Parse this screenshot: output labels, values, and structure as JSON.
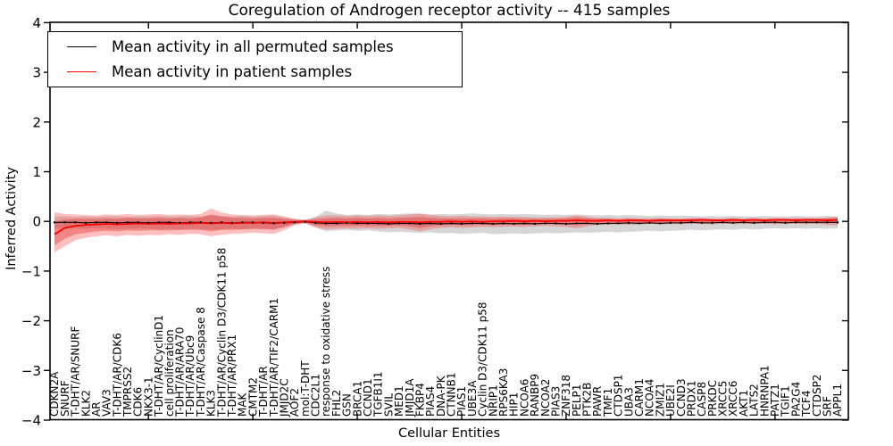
{
  "title": "Coregulation of Androgen receptor activity -- 415 samples",
  "legend": {
    "items": [
      {
        "label": "Mean activity in all permuted samples",
        "color": "#000000"
      },
      {
        "label": "Mean activity in patient samples",
        "color": "#ff0000"
      }
    ]
  },
  "chart_data": {
    "type": "line",
    "title": "Coregulation of Androgen receptor activity -- 415 samples",
    "xlabel": "Cellular Entities",
    "ylabel": "Inferred Activity",
    "ylim": [
      -4,
      4
    ],
    "yticks": [
      4,
      3,
      2,
      1,
      0,
      -1,
      -2,
      -3,
      -4
    ],
    "xtick_indices": [
      9,
      19,
      29,
      39,
      49,
      59,
      69
    ],
    "grid": false,
    "legend_position": "upper left",
    "categories": [
      "CDKN2A",
      "SNURF",
      "T-DHT/AR/SNURF",
      "KLK2",
      "AR",
      "VAV3",
      "T-DHT/AR/CDK6",
      "TMPRSS2",
      "CDK6",
      "NKX3-1",
      "T-DHT/AR/CyclinD1",
      "cell proliferation",
      "T-DHT/AR/ARA70",
      "T-DHT/AR/Ubc9",
      "T-DHT/AR/Caspase 8",
      "KLK3",
      "T-DHT/AR/Cyclin D3/CDK11 p58",
      "T-DHT/AR/PRX1",
      "MAK",
      "CMTM2",
      "T-DHT/AR",
      "T-DHT/AR/TIF2/CARM1",
      "JMJD2C",
      "AOF2",
      "mol:T-DHT",
      "CDC2L1",
      "response to oxidative stress",
      "FHL2",
      "GSN",
      "BRCA1",
      "CCND1",
      "TGFB1I1",
      "SVIL",
      "MED1",
      "JMJD1A",
      "FKBP4",
      "PIAS4",
      "DNA-PK",
      "CTNNB1",
      "PIAS1",
      "UBE3A",
      "Cyclin D3/CDK11 p58",
      "NRIP1",
      "RPS6KA3",
      "HIP1",
      "NCOA6",
      "RANBP9",
      "NCOA2",
      "PIAS3",
      "ZNF318",
      "PELP1",
      "PTK2B",
      "PAWR",
      "TMF1",
      "CTDSP1",
      "UBA3",
      "CARM1",
      "NCOA4",
      "ZMIZ1",
      "UBE2I",
      "CCND3",
      "PRDX1",
      "CASP8",
      "PRKDC",
      "XRCC5",
      "XRCC6",
      "AKT1",
      "LATS2",
      "HNRNPA1",
      "PATZ1",
      "TGIF1",
      "PA2G4",
      "TCF4",
      "CTDSP2",
      "SRF",
      "APPL1"
    ],
    "series": [
      {
        "name": "Mean activity in all permuted samples",
        "color": "#000000",
        "values": [
          -0.02,
          -0.02,
          -0.02,
          -0.03,
          -0.02,
          -0.02,
          -0.03,
          -0.02,
          -0.02,
          -0.03,
          -0.02,
          -0.02,
          -0.03,
          -0.02,
          -0.02,
          -0.03,
          -0.02,
          -0.03,
          -0.02,
          -0.02,
          -0.03,
          -0.04,
          -0.03,
          -0.02,
          -0.01,
          -0.03,
          -0.04,
          -0.04,
          -0.03,
          -0.04,
          -0.04,
          -0.04,
          -0.05,
          -0.04,
          -0.04,
          -0.05,
          -0.04,
          -0.05,
          -0.04,
          -0.05,
          -0.04,
          -0.04,
          -0.05,
          -0.04,
          -0.05,
          -0.04,
          -0.05,
          -0.04,
          -0.04,
          -0.05,
          -0.04,
          -0.04,
          -0.05,
          -0.04,
          -0.04,
          -0.03,
          -0.04,
          -0.03,
          -0.04,
          -0.03,
          -0.03,
          -0.02,
          -0.03,
          -0.03,
          -0.02,
          -0.03,
          -0.02,
          -0.03,
          -0.02,
          -0.02,
          -0.03,
          -0.02,
          -0.02,
          -0.02,
          -0.02,
          -0.02
        ]
      },
      {
        "name": "Mean activity in patient samples",
        "color": "#ff0000",
        "values": [
          -0.26,
          -0.13,
          -0.09,
          -0.07,
          -0.06,
          -0.05,
          -0.06,
          -0.05,
          -0.04,
          -0.05,
          -0.04,
          -0.05,
          -0.04,
          -0.04,
          -0.03,
          -0.04,
          -0.03,
          -0.04,
          -0.03,
          -0.03,
          -0.02,
          -0.03,
          -0.02,
          -0.01,
          0.0,
          -0.01,
          -0.02,
          -0.01,
          -0.02,
          -0.01,
          -0.02,
          -0.01,
          -0.02,
          -0.01,
          -0.01,
          -0.02,
          -0.01,
          -0.01,
          0.0,
          -0.01,
          0.0,
          -0.01,
          0.0,
          0.0,
          0.01,
          0.0,
          0.01,
          0.0,
          0.01,
          0.01,
          0.02,
          0.01,
          0.01,
          0.02,
          0.01,
          0.02,
          0.02,
          0.01,
          0.02,
          0.02,
          0.02,
          0.02,
          0.03,
          0.02,
          0.02,
          0.03,
          0.02,
          0.03,
          0.02,
          0.03,
          0.03,
          0.02,
          0.03,
          0.03,
          0.02,
          0.03
        ]
      }
    ],
    "bands": [
      {
        "name": "permuted-samples-std-band",
        "color": "rgba(0,0,0,0.16)",
        "upper": [
          0.1,
          0.1,
          0.09,
          0.1,
          0.09,
          0.1,
          0.1,
          0.09,
          0.1,
          0.1,
          0.11,
          0.1,
          0.1,
          0.11,
          0.1,
          0.12,
          0.11,
          0.1,
          0.11,
          0.1,
          0.11,
          0.12,
          0.08,
          0.05,
          0.03,
          0.09,
          0.22,
          0.16,
          0.13,
          0.14,
          0.13,
          0.15,
          0.14,
          0.15,
          0.16,
          0.15,
          0.14,
          0.15,
          0.14,
          0.15,
          0.16,
          0.15,
          0.14,
          0.15,
          0.14,
          0.15,
          0.14,
          0.13,
          0.14,
          0.13,
          0.14,
          0.13,
          0.12,
          0.13,
          0.12,
          0.13,
          0.12,
          0.11,
          0.12,
          0.11,
          0.12,
          0.11,
          0.1,
          0.11,
          0.1,
          0.11,
          0.1,
          0.1,
          0.11,
          0.1,
          0.1,
          0.11,
          0.1,
          0.1,
          0.11,
          0.1
        ],
        "lower": [
          -0.14,
          -0.15,
          -0.14,
          -0.15,
          -0.14,
          -0.15,
          -0.16,
          -0.15,
          -0.14,
          -0.15,
          -0.16,
          -0.15,
          -0.16,
          -0.15,
          -0.16,
          -0.17,
          -0.16,
          -0.15,
          -0.16,
          -0.15,
          -0.16,
          -0.17,
          -0.1,
          -0.06,
          -0.04,
          -0.12,
          -0.2,
          -0.18,
          -0.17,
          -0.19,
          -0.18,
          -0.2,
          -0.22,
          -0.21,
          -0.22,
          -0.23,
          -0.22,
          -0.24,
          -0.23,
          -0.25,
          -0.24,
          -0.23,
          -0.26,
          -0.25,
          -0.24,
          -0.25,
          -0.24,
          -0.23,
          -0.24,
          -0.23,
          -0.22,
          -0.23,
          -0.22,
          -0.21,
          -0.22,
          -0.21,
          -0.2,
          -0.19,
          -0.2,
          -0.19,
          -0.18,
          -0.17,
          -0.18,
          -0.17,
          -0.16,
          -0.17,
          -0.15,
          -0.16,
          -0.15,
          -0.14,
          -0.15,
          -0.14,
          -0.15,
          -0.14,
          -0.15,
          -0.14
        ]
      },
      {
        "name": "patient-samples-outer-band",
        "color": "rgba(255,60,60,0.33)",
        "upper": [
          0.18,
          0.15,
          0.14,
          0.13,
          0.12,
          0.14,
          0.13,
          0.15,
          0.13,
          0.14,
          0.15,
          0.13,
          0.14,
          0.13,
          0.15,
          0.26,
          0.18,
          0.14,
          0.13,
          0.12,
          0.13,
          0.14,
          0.1,
          0.05,
          0.03,
          0.08,
          0.12,
          0.12,
          0.11,
          0.12,
          0.11,
          0.12,
          0.11,
          0.12,
          0.14,
          0.16,
          0.13,
          0.11,
          0.1,
          0.11,
          0.1,
          0.1,
          0.09,
          0.1,
          0.09,
          0.09,
          0.08,
          0.08,
          0.08,
          0.09,
          0.12,
          0.09,
          0.07,
          0.07,
          0.06,
          0.07,
          0.06,
          0.06,
          0.07,
          0.06,
          0.06,
          0.07,
          0.07,
          0.06,
          0.06,
          0.07,
          0.06,
          0.07,
          0.06,
          0.07,
          0.06,
          0.07,
          0.07,
          0.06,
          0.08,
          0.09
        ],
        "lower": [
          -0.62,
          -0.5,
          -0.38,
          -0.33,
          -0.3,
          -0.28,
          -0.3,
          -0.27,
          -0.29,
          -0.27,
          -0.28,
          -0.26,
          -0.27,
          -0.25,
          -0.26,
          -0.3,
          -0.27,
          -0.25,
          -0.24,
          -0.23,
          -0.24,
          -0.25,
          -0.18,
          -0.08,
          -0.04,
          -0.12,
          -0.16,
          -0.15,
          -0.14,
          -0.15,
          -0.14,
          -0.15,
          -0.14,
          -0.13,
          -0.16,
          -0.2,
          -0.16,
          -0.13,
          -0.12,
          -0.13,
          -0.12,
          -0.11,
          -0.12,
          -0.11,
          -0.1,
          -0.11,
          -0.1,
          -0.09,
          -0.1,
          -0.11,
          -0.14,
          -0.1,
          -0.07,
          -0.07,
          -0.06,
          -0.07,
          -0.06,
          -0.05,
          -0.06,
          -0.05,
          -0.06,
          -0.05,
          -0.05,
          -0.06,
          -0.05,
          -0.05,
          -0.06,
          -0.05,
          -0.05,
          -0.06,
          -0.05,
          -0.05,
          -0.06,
          -0.05,
          -0.07,
          -0.08
        ]
      },
      {
        "name": "patient-samples-inner-band",
        "color": "rgba(230,40,40,0.38)",
        "upper": [
          0.0,
          0.04,
          0.05,
          0.05,
          0.05,
          0.06,
          0.05,
          0.07,
          0.06,
          0.06,
          0.07,
          0.06,
          0.07,
          0.06,
          0.08,
          0.14,
          0.1,
          0.07,
          0.07,
          0.06,
          0.07,
          0.07,
          0.05,
          0.03,
          0.02,
          0.04,
          0.06,
          0.07,
          0.06,
          0.07,
          0.06,
          0.07,
          0.06,
          0.07,
          0.08,
          0.09,
          0.07,
          0.06,
          0.06,
          0.06,
          0.06,
          0.06,
          0.05,
          0.06,
          0.06,
          0.05,
          0.05,
          0.05,
          0.05,
          0.06,
          0.08,
          0.06,
          0.05,
          0.05,
          0.04,
          0.05,
          0.04,
          0.04,
          0.05,
          0.04,
          0.04,
          0.05,
          0.05,
          0.04,
          0.04,
          0.05,
          0.04,
          0.05,
          0.04,
          0.05,
          0.05,
          0.05,
          0.05,
          0.05,
          0.06,
          0.07
        ],
        "lower": [
          -0.48,
          -0.35,
          -0.26,
          -0.23,
          -0.2,
          -0.19,
          -0.2,
          -0.18,
          -0.19,
          -0.18,
          -0.18,
          -0.18,
          -0.18,
          -0.17,
          -0.17,
          -0.2,
          -0.17,
          -0.17,
          -0.16,
          -0.15,
          -0.15,
          -0.16,
          -0.12,
          -0.05,
          -0.02,
          -0.08,
          -0.1,
          -0.09,
          -0.09,
          -0.09,
          -0.09,
          -0.09,
          -0.09,
          -0.08,
          -0.1,
          -0.13,
          -0.1,
          -0.08,
          -0.07,
          -0.08,
          -0.07,
          -0.07,
          -0.07,
          -0.07,
          -0.06,
          -0.07,
          -0.06,
          -0.05,
          -0.06,
          -0.06,
          -0.08,
          -0.06,
          -0.04,
          -0.03,
          -0.03,
          -0.03,
          -0.03,
          -0.03,
          -0.03,
          -0.02,
          -0.03,
          -0.02,
          -0.02,
          -0.03,
          -0.02,
          -0.02,
          -0.03,
          -0.02,
          -0.02,
          -0.02,
          -0.02,
          -0.02,
          -0.02,
          -0.02,
          -0.03,
          -0.04
        ]
      }
    ]
  }
}
